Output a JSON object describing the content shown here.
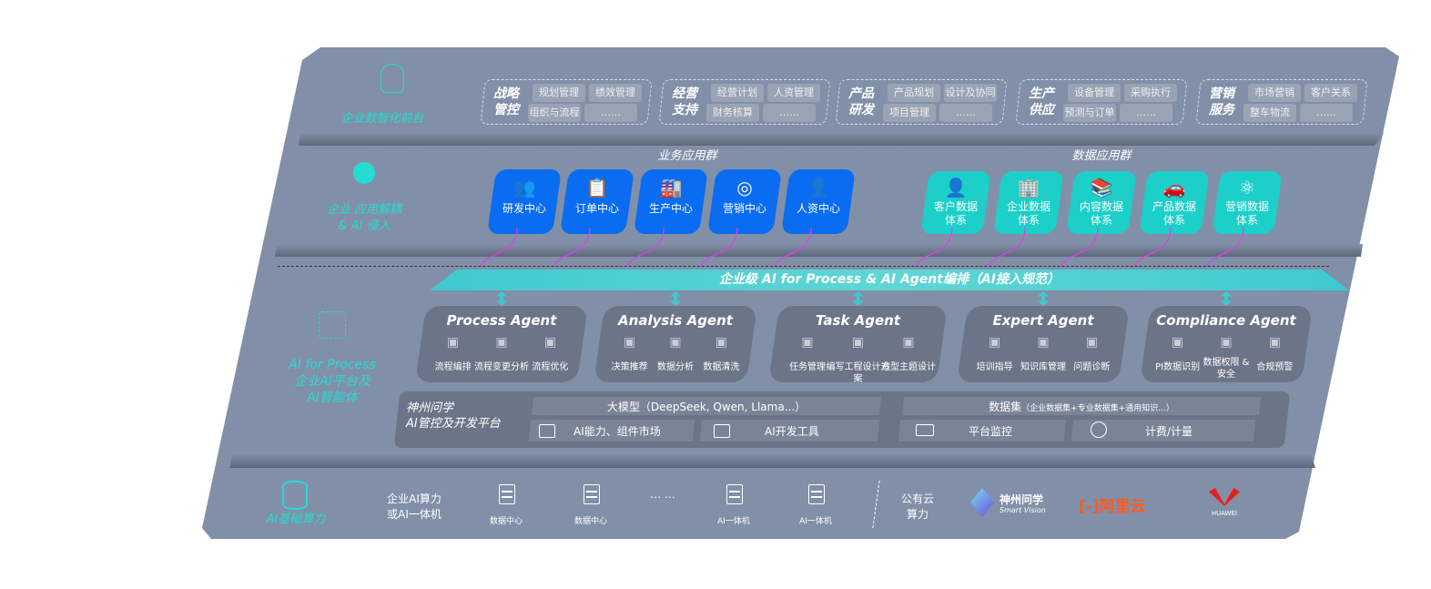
{
  "colors": {
    "panel": "#8190a8",
    "business_app": "#0a6cf0",
    "data_app": "#1ccfc9",
    "layer_label": "#24dcd2",
    "agent_card": "#6c7588",
    "connector": "#e040e8"
  },
  "layers": {
    "front": {
      "label": "企业数智化前台",
      "icon": "brain-icon"
    },
    "apps": {
      "label": [
        "企业 应用解耦",
        "& AI 侵入"
      ],
      "icon": "molecule-icon"
    },
    "ai": {
      "label": [
        "AI for Process",
        "企业AI平台及",
        "AI智能体"
      ],
      "icon": "face-scan-icon"
    },
    "infra": {
      "label": "AI基础算力",
      "icon": "database-icon"
    }
  },
  "front_groups": [
    {
      "title": [
        "战略",
        "管控"
      ],
      "items": [
        "规划管理",
        "绩效管理",
        "组织与流程",
        "……"
      ]
    },
    {
      "title": [
        "经营",
        "支持"
      ],
      "items": [
        "经营计划",
        "人资管理",
        "财务核算",
        "……"
      ]
    },
    {
      "title": [
        "产品",
        "研发"
      ],
      "items": [
        "产品规划",
        "设计及协同",
        "项目管理",
        "……"
      ]
    },
    {
      "title": [
        "生产",
        "供应"
      ],
      "items": [
        "设备管理",
        "采购执行",
        "预测与订单",
        "……"
      ]
    },
    {
      "title": [
        "营销",
        "服务"
      ],
      "items": [
        "市场营销",
        "客户关系",
        "整车物流",
        "……"
      ]
    }
  ],
  "business_apps": {
    "title": "业务应用群",
    "items": [
      {
        "label": "研发中心",
        "icon": "users-icon"
      },
      {
        "label": "订单中心",
        "icon": "clipboard-icon"
      },
      {
        "label": "生产中心",
        "icon": "factory-icon"
      },
      {
        "label": "营销中心",
        "icon": "target-icon"
      },
      {
        "label": "人资中心",
        "icon": "person-chart-icon"
      }
    ]
  },
  "data_apps": {
    "title": "数据应用群",
    "items": [
      {
        "label": [
          "客户数据",
          "体系"
        ],
        "icon": "user-icon"
      },
      {
        "label": [
          "企业数据",
          "体系"
        ],
        "icon": "building-icon"
      },
      {
        "label": [
          "内容数据",
          "体系"
        ],
        "icon": "books-icon"
      },
      {
        "label": [
          "产品数据",
          "体系"
        ],
        "icon": "car-icon"
      },
      {
        "label": [
          "营销数据",
          "体系"
        ],
        "icon": "atom-icon"
      }
    ]
  },
  "orchestration": "企业级 AI for Process & AI Agent编排（AI接入规范）",
  "agents": [
    {
      "title": "Process Agent",
      "items": [
        "流程编排",
        "流程变更分析",
        "流程优化"
      ]
    },
    {
      "title": "Analysis Agent",
      "items": [
        "决策推荐",
        "数据分析",
        "数据清洗"
      ]
    },
    {
      "title": "Task Agent",
      "items": [
        "任务管理",
        "编写工程设计方案",
        "造型主题设计"
      ]
    },
    {
      "title": "Expert Agent",
      "items": [
        "培训指导",
        "知识库管理",
        "问题诊断"
      ]
    },
    {
      "title": "Compliance Agent",
      "items": [
        "PI数据识别",
        "数据权限 &\n安全",
        "合规预警"
      ]
    }
  ],
  "platform": {
    "label": [
      "神州问学",
      "AI管控及开发平台"
    ],
    "llm": "大模型（DeepSeek, Qwen, Llama...）",
    "market": "AI能力、组件市场",
    "devtools": "AI开发工具",
    "dataset_title": "数据集",
    "dataset_detail": "（企业数据集+专业数据集+通用知识...）",
    "monitor": "平台监控",
    "billing": "计费/计量"
  },
  "infra": {
    "private_label": [
      "企业AI算力",
      "或AI一体机"
    ],
    "servers": [
      "数据中心",
      "数据中心",
      "AI一体机",
      "AI一体机"
    ],
    "ellipsis": "… …",
    "public_label": [
      "公有云",
      "算力"
    ],
    "vendors": [
      {
        "name": "神州问学",
        "sub": "Smart Vision"
      },
      {
        "name": "阿里云"
      },
      {
        "name": "HUAWEI"
      }
    ]
  }
}
